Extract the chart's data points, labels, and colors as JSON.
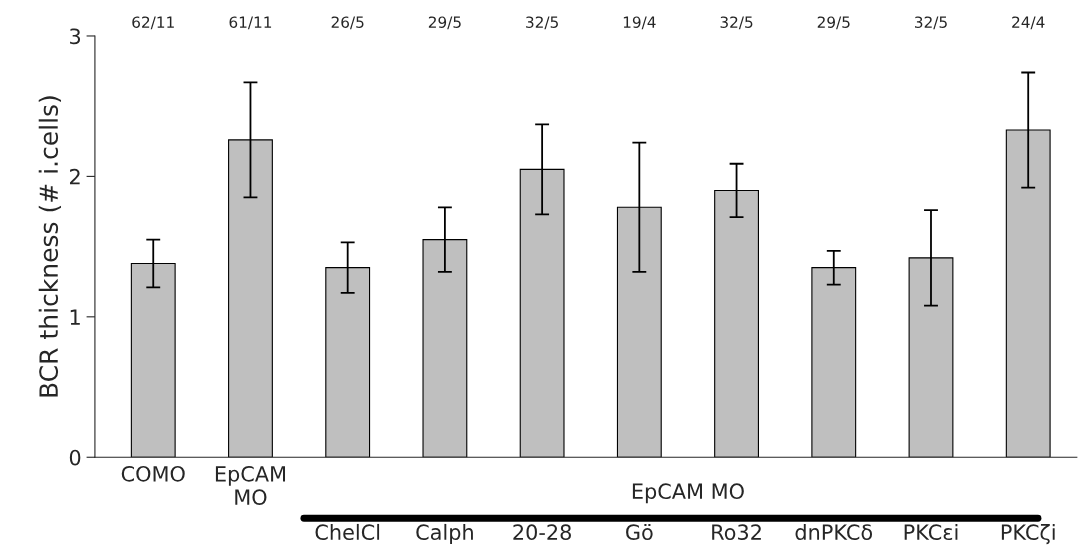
{
  "chart_data": {
    "type": "bar",
    "ylabel": "BCR thickness (# i.cells)",
    "categories": [
      "COMO",
      "EpCAM\nMO",
      "ChelCl",
      "Calph",
      "20-28",
      "Gö",
      "Ro32",
      "dnPKCδ",
      "PKCεi",
      "PKCζi"
    ],
    "values": [
      1.38,
      2.26,
      1.35,
      1.55,
      2.05,
      1.78,
      1.9,
      1.35,
      1.42,
      2.33
    ],
    "errors": [
      0.17,
      0.41,
      0.18,
      0.23,
      0.32,
      0.46,
      0.19,
      0.12,
      0.34,
      0.41
    ],
    "color": "#bfbfbf",
    "ylim": [
      0,
      3
    ],
    "yticks": [
      0,
      1,
      2,
      3
    ],
    "grid": false,
    "legend": false,
    "annotations": [
      "62/11",
      "61/11",
      "26/5",
      "29/5",
      "32/5",
      "19/4",
      "32/5",
      "29/5",
      "32/5",
      "24/4",
      "EpCAM MO"
    ]
  }
}
